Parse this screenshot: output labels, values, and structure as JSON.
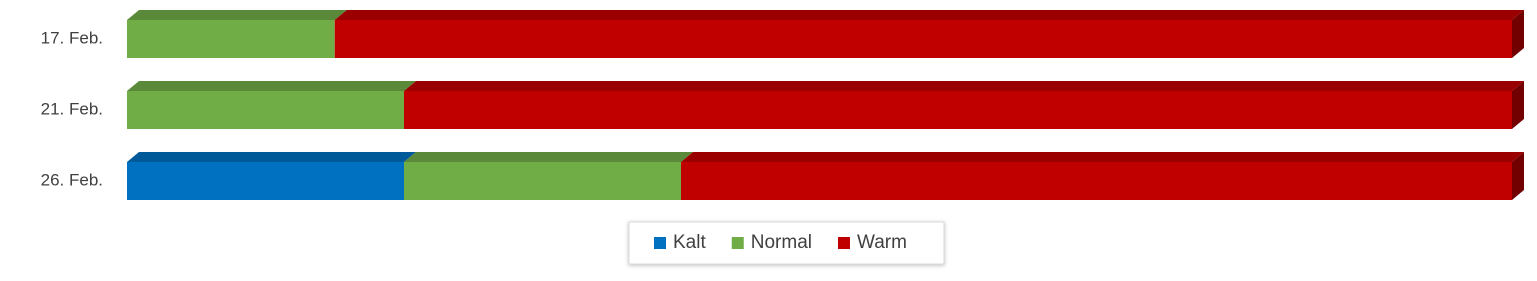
{
  "chart_data": {
    "type": "bar",
    "orientation": "horizontal",
    "stacked": true,
    "three_d": true,
    "categories": [
      "17. Feb.",
      "21. Feb.",
      "26. Feb."
    ],
    "series": [
      {
        "name": "Kalt",
        "color": "#0070c0",
        "values": [
          0,
          0,
          20
        ]
      },
      {
        "name": "Normal",
        "color": "#70ad47",
        "values": [
          15,
          20,
          20
        ]
      },
      {
        "name": "Warm",
        "color": "#c00000",
        "values": [
          85,
          80,
          60
        ]
      }
    ],
    "legend": "bottom"
  }
}
